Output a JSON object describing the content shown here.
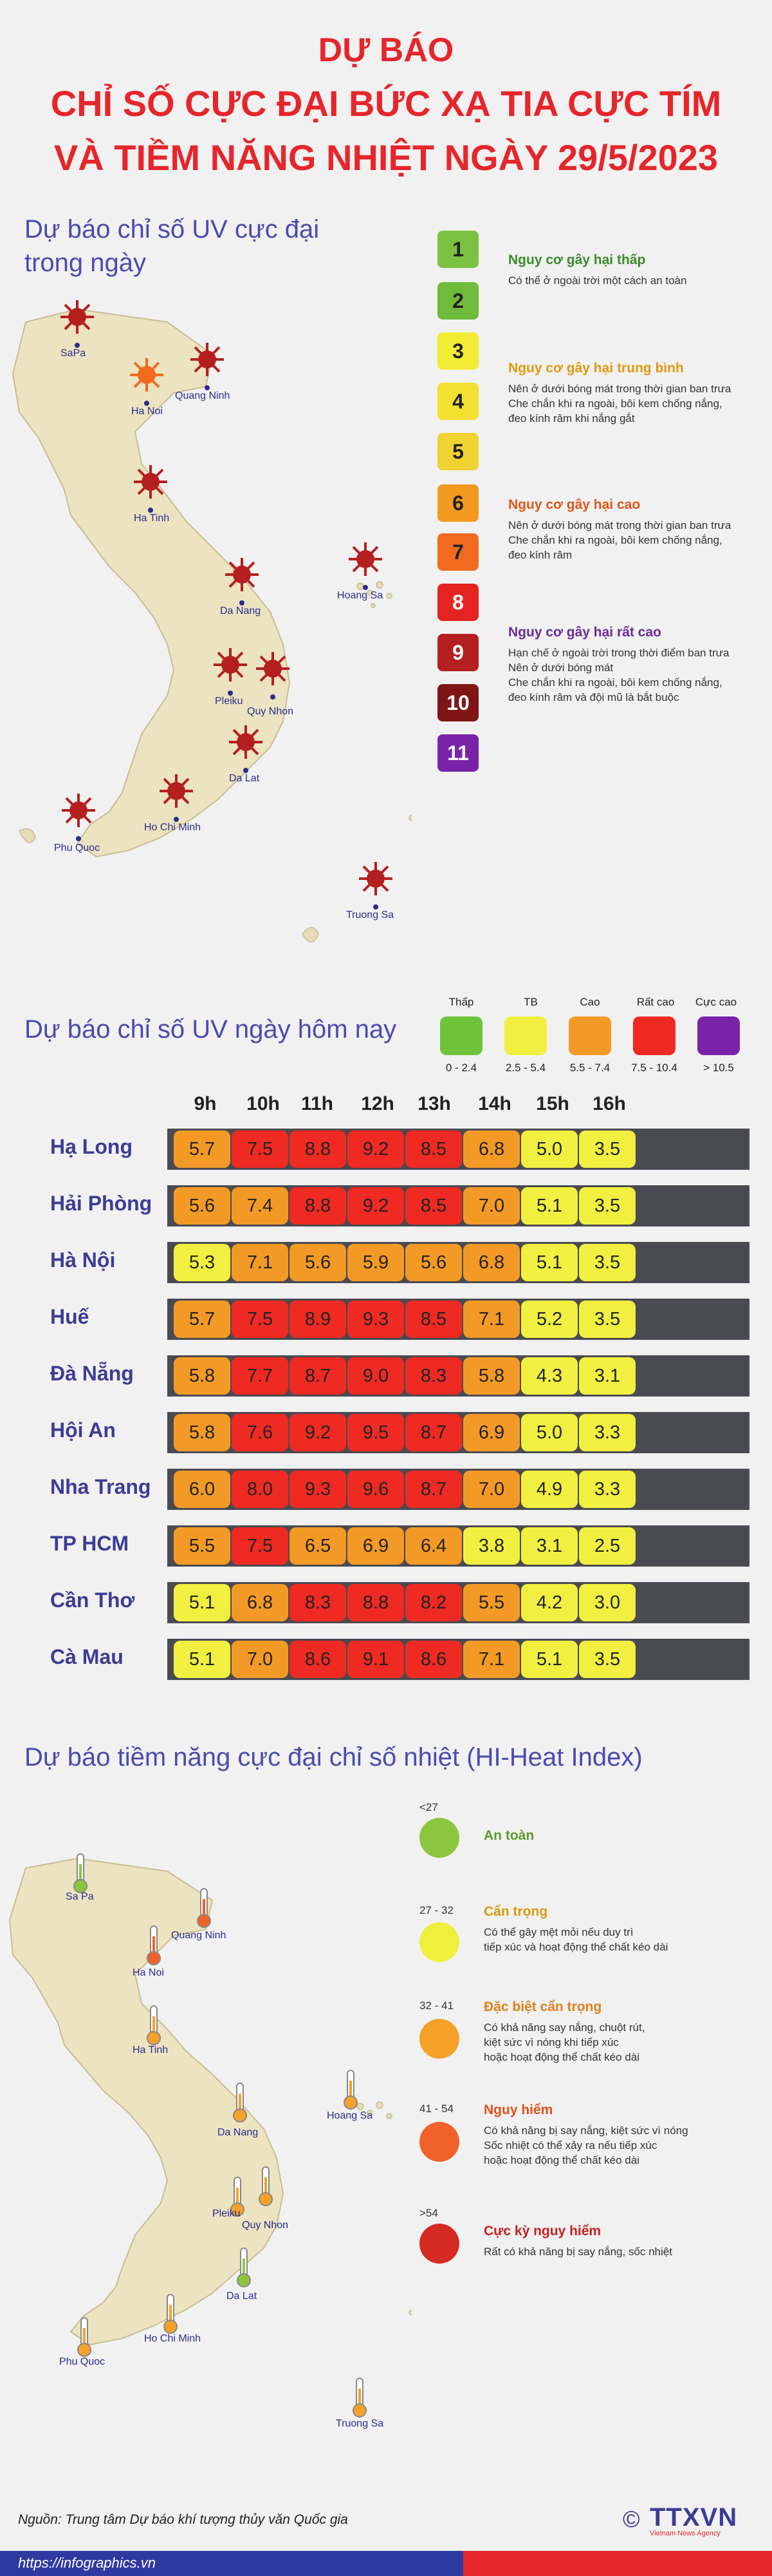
{
  "title": {
    "line1": "DỰ BÁO",
    "line2": "CHỈ SỐ CỰC ĐẠI BỨC XẠ TIA CỰC TÍM",
    "line3": "VÀ TIỀM NĂNG NHIỆT NGÀY 29/5/2023"
  },
  "uv_map": {
    "heading_line1": "Dự báo chỉ số UV cực đại",
    "heading_line2": "trong ngày",
    "cities": {
      "sapa": "SaPa",
      "hanoi": "Ha Noi",
      "quangninh": "Quang Ninh",
      "hatinh": "Ha Tinh",
      "danang": "Da Nang",
      "hoangsa": "Hoang Sa",
      "pleiku": "Pleiku",
      "quynhon": "Quy Nhon",
      "dalat": "Da Lat",
      "hcm": "Ho Chi Minh",
      "phuquoc": "Phu Quoc",
      "truongsa": "Truong Sa"
    },
    "levels": [
      {
        "n": "1",
        "color": "#7cc242"
      },
      {
        "n": "2",
        "color": "#6fbb3c"
      },
      {
        "n": "3",
        "color": "#f3ec35"
      },
      {
        "n": "4",
        "color": "#f3e132"
      },
      {
        "n": "5",
        "color": "#f0d232"
      },
      {
        "n": "6",
        "color": "#f39a1f"
      },
      {
        "n": "7",
        "color": "#f16a1e"
      },
      {
        "n": "8",
        "color": "#e52421"
      },
      {
        "n": "9",
        "color": "#b51f1f"
      },
      {
        "n": "10",
        "color": "#7f1515"
      },
      {
        "n": "11",
        "color": "#7a23a8"
      }
    ],
    "groups": {
      "g1": {
        "title": "Nguy cơ gây hại thấp",
        "desc": "Có thể ở ngoài trời một cách an toàn",
        "color": "#3a8a2a"
      },
      "g2": {
        "title": "Nguy cơ gây hại trung bình",
        "desc1": "Nên ở dưới bóng mát trong thời gian ban trưa",
        "desc2": "Che chắn khi ra ngoài, bôi kem chống nắng,",
        "desc3": "đeo kính râm khi nắng gắt",
        "color": "#e09a10"
      },
      "g3": {
        "title": "Nguy cơ gây hại cao",
        "desc1": "Nên ở dưới bóng mát trong thời gian ban trưa",
        "desc2": "Che chắn khi ra ngoài, bôi kem chống nắng,",
        "desc3": "đeo kính râm",
        "color": "#e0571a"
      },
      "g4": {
        "title": "Nguy cơ gây hại rất cao",
        "desc1": "Hạn chế ở ngoài trời trong thời điểm ban trưa",
        "desc2": "Nên ở dưới bóng mát",
        "desc3": "Che chắn khi ra ngoài, bôi kem chống nắng,",
        "desc4": "đeo kính râm và đội mũ là bắt buộc",
        "color": "#6a2a9a"
      }
    }
  },
  "uv_today": {
    "heading": "Dự báo chỉ số UV ngày hôm nay",
    "legend": [
      {
        "name": "Thấp",
        "range": "0 - 2.4",
        "color": "#6fc43a"
      },
      {
        "name": "TB",
        "range": "2.5 - 5.4",
        "color": "#f1f040"
      },
      {
        "name": "Cao",
        "range": "5.5 - 7.4",
        "color": "#f39a26"
      },
      {
        "name": "Rất cao",
        "range": "7.5 - 10.4",
        "color": "#ee2a22"
      },
      {
        "name": "Cực cao",
        "range": "> 10.5",
        "color": "#7a23a8"
      }
    ],
    "hours": [
      "9h",
      "10h",
      "11h",
      "12h",
      "13h",
      "14h",
      "15h",
      "16h"
    ],
    "rows": [
      {
        "city": "Hạ Long",
        "values": [
          "5.7",
          "7.5",
          "8.8",
          "9.2",
          "8.5",
          "6.8",
          "5.0",
          "3.5"
        ]
      },
      {
        "city": "Hải Phòng",
        "values": [
          "5.6",
          "7.4",
          "8.8",
          "9.2",
          "8.5",
          "7.0",
          "5.1",
          "3.5"
        ]
      },
      {
        "city": "Hà Nội",
        "values": [
          "5.3",
          "7.1",
          "5.6",
          "5.9",
          "5.6",
          "6.8",
          "5.1",
          "3.5"
        ]
      },
      {
        "city": "Huế",
        "values": [
          "5.7",
          "7.5",
          "8.9",
          "9.3",
          "8.5",
          "7.1",
          "5.2",
          "3.5"
        ]
      },
      {
        "city": "Đà Nẵng",
        "values": [
          "5.8",
          "7.7",
          "8.7",
          "9.0",
          "8.3",
          "5.8",
          "4.3",
          "3.1"
        ]
      },
      {
        "city": "Hội An",
        "values": [
          "5.8",
          "7.6",
          "9.2",
          "9.5",
          "8.7",
          "6.9",
          "5.0",
          "3.3"
        ]
      },
      {
        "city": "Nha Trang",
        "values": [
          "6.0",
          "8.0",
          "9.3",
          "9.6",
          "8.7",
          "7.0",
          "4.9",
          "3.3"
        ]
      },
      {
        "city": "TP HCM",
        "values": [
          "5.5",
          "7.5",
          "6.5",
          "6.9",
          "6.4",
          "3.8",
          "3.1",
          "2.5"
        ]
      },
      {
        "city": "Cần Thơ",
        "values": [
          "5.1",
          "6.8",
          "8.3",
          "8.8",
          "8.2",
          "5.5",
          "4.2",
          "3.0"
        ]
      },
      {
        "city": "Cà Mau",
        "values": [
          "5.1",
          "7.0",
          "8.6",
          "9.1",
          "8.6",
          "7.1",
          "5.1",
          "3.5"
        ]
      }
    ]
  },
  "heat": {
    "heading": "Dự báo tiềm năng cực đại chỉ số nhiệt (HI-Heat Index)",
    "cities": {
      "sapa": "Sa Pa",
      "quangninh": "Quang Ninh",
      "hanoi": "Ha Noi",
      "hatinh": "Ha Tinh",
      "danang": "Da Nang",
      "hoangsa": "Hoang Sa",
      "pleiku": "Pleiku",
      "quynhon": "Quy Nhon",
      "dalat": "Da Lat",
      "hcm": "Ho Chi Minh",
      "phuquoc": "Phu Quoc",
      "truongsa": "Truong Sa"
    },
    "levels": [
      {
        "range": "<27",
        "title": "An toàn",
        "d1": "",
        "d2": "",
        "d3": "",
        "color": "#8cc63f",
        "tcolor": "#5a9a2a"
      },
      {
        "range": "27 - 32",
        "title": "Cẩn trọng",
        "d1": "Có thể gây mệt mỏi nếu duy trì",
        "d2": "tiếp xúc và hoạt động thể chất kéo dài",
        "d3": "",
        "color": "#eef03c",
        "tcolor": "#d89a10"
      },
      {
        "range": "32 - 41",
        "title": "Đặc biệt cẩn trọng",
        "d1": "Có khả năng say nắng, chuột rút,",
        "d2": "kiệt sức vì nóng khi tiếp xúc",
        "d3": "hoặc hoạt động thể chất kéo dài",
        "color": "#f5a12a",
        "tcolor": "#e0801a"
      },
      {
        "range": "41 - 54",
        "title": "Nguy hiểm",
        "d1": "Có khả năng bị say nắng, kiệt sức vì nóng",
        "d2": "Sốc nhiệt có thể xảy ra nếu tiếp xúc",
        "d3": "hoặc hoạt động thể chất kéo dài",
        "color": "#f1612a",
        "tcolor": "#e0501a"
      },
      {
        "range": ">54",
        "title": "Cực kỳ nguy hiểm",
        "d1": "Rất có khả năng bị say nắng, sốc nhiệt",
        "d2": "",
        "d3": "",
        "color": "#d42a22",
        "tcolor": "#c82020"
      }
    ]
  },
  "footer": {
    "source": "Nguồn: Trung tâm Dự báo khí tượng thủy văn Quốc gia",
    "url": "https://infographics.vn",
    "logo": "TTXVN",
    "logo_sub": "Vietnam News Agency",
    "copyright": "©"
  }
}
